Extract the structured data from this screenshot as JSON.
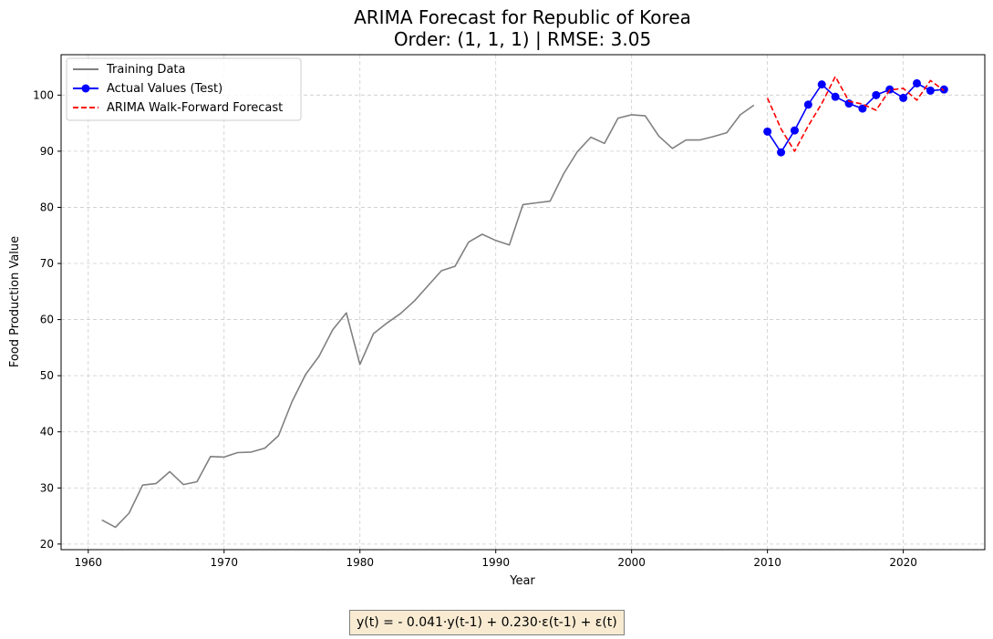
{
  "chart_data": {
    "type": "line",
    "title": "ARIMA Forecast for Republic of Korea",
    "subtitle": "Order: (1, 1, 1) | RMSE: 3.05",
    "xlabel": "Year",
    "ylabel": "Food Production Value",
    "xlim": [
      1958,
      2026
    ],
    "ylim": [
      19,
      107.2
    ],
    "x_ticks": [
      1960,
      1970,
      1980,
      1990,
      2000,
      2010,
      2020
    ],
    "y_ticks": [
      20,
      30,
      40,
      50,
      60,
      70,
      80,
      90,
      100
    ],
    "grid": true,
    "legend_position": "top-left",
    "series": [
      {
        "name": "Training Data",
        "color": "#808080",
        "style": "solid",
        "x": [
          1961,
          1962,
          1963,
          1964,
          1965,
          1966,
          1967,
          1968,
          1969,
          1970,
          1971,
          1972,
          1973,
          1974,
          1975,
          1976,
          1977,
          1978,
          1979,
          1980,
          1981,
          1982,
          1983,
          1984,
          1985,
          1986,
          1987,
          1988,
          1989,
          1990,
          1991,
          1992,
          1993,
          1994,
          1995,
          1996,
          1997,
          1998,
          1999,
          2000,
          2001,
          2002,
          2003,
          2004,
          2005,
          2006,
          2007,
          2008,
          2009
        ],
        "y": [
          24.3,
          23.0,
          25.5,
          30.5,
          30.8,
          32.9,
          30.6,
          31.1,
          35.6,
          35.5,
          36.3,
          36.4,
          37.1,
          39.3,
          45.4,
          50.2,
          53.5,
          58.2,
          61.2,
          52.0,
          57.5,
          59.4,
          61.1,
          63.3,
          66.0,
          68.7,
          69.5,
          73.8,
          75.2,
          74.1,
          73.3,
          80.5,
          80.8,
          81.1,
          86.0,
          89.9,
          92.5,
          91.4,
          95.9,
          96.5,
          96.3,
          92.7,
          90.5,
          92.0,
          92.0,
          92.6,
          93.3,
          96.5,
          98.2
        ]
      },
      {
        "name": "Actual Values (Test)",
        "color": "#0000ff",
        "style": "solid-markers",
        "x": [
          2010,
          2011,
          2012,
          2013,
          2014,
          2015,
          2016,
          2017,
          2018,
          2019,
          2020,
          2021,
          2022,
          2023
        ],
        "y": [
          93.5,
          89.8,
          93.7,
          98.3,
          101.9,
          99.7,
          98.5,
          97.6,
          100.0,
          101.0,
          99.5,
          102.1,
          100.8,
          101.0
        ]
      },
      {
        "name": "ARIMA Walk-Forward Forecast",
        "color": "#ff0000",
        "style": "dashed",
        "x": [
          2010,
          2011,
          2012,
          2013,
          2014,
          2015,
          2016,
          2017,
          2018,
          2019,
          2020,
          2021,
          2022,
          2023
        ],
        "y": [
          99.5,
          94.0,
          90.0,
          94.5,
          98.5,
          103.3,
          98.9,
          98.4,
          97.3,
          100.9,
          101.2,
          99.1,
          102.6,
          100.8
        ]
      }
    ]
  },
  "equation": {
    "text": "y(t) = - 0.041·y(t-1) + 0.230·ε(t-1) + ε(t)",
    "background": "#f8ebd2"
  }
}
